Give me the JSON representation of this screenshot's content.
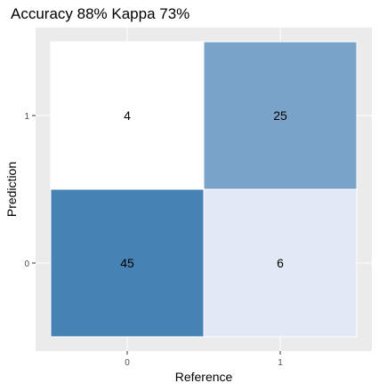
{
  "chart_data": {
    "type": "heatmap",
    "title": "Accuracy 88% Kappa 73%",
    "xlabel": "Reference",
    "ylabel": "Prediction",
    "x_categories": [
      "0",
      "1"
    ],
    "y_categories": [
      "0",
      "1"
    ],
    "cells": [
      {
        "reference": "0",
        "prediction": "1",
        "value": 4,
        "fill": "#ffffff"
      },
      {
        "reference": "1",
        "prediction": "1",
        "value": 25,
        "fill": "#7aa3c9"
      },
      {
        "reference": "0",
        "prediction": "0",
        "value": 45,
        "fill": "#4682b4"
      },
      {
        "reference": "1",
        "prediction": "0",
        "value": 6,
        "fill": "#e2e9f4"
      }
    ],
    "panel_background": "#ebebeb",
    "grid": true
  }
}
